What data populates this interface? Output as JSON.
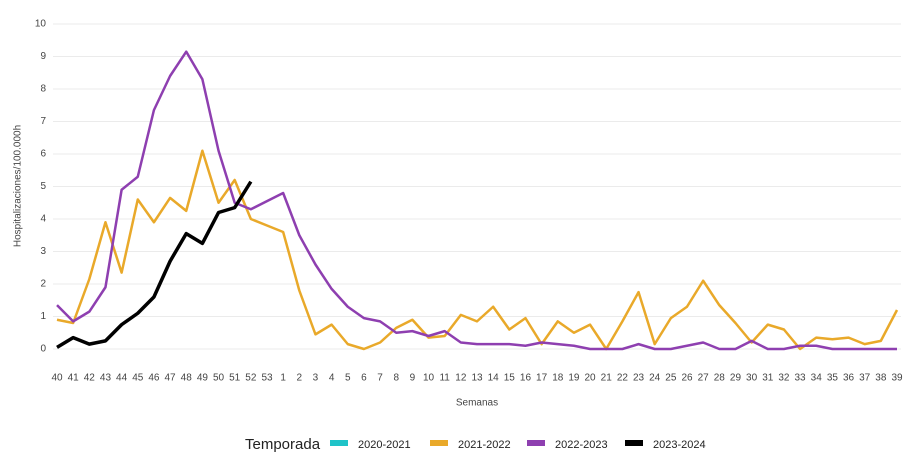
{
  "chart_data": {
    "type": "line",
    "x_label": "Semanas",
    "y_label": "Hospitalizaciones/100.000h",
    "legend_title": "Temporada",
    "categories": [
      "40",
      "41",
      "42",
      "43",
      "44",
      "45",
      "46",
      "47",
      "48",
      "49",
      "50",
      "51",
      "52",
      "53",
      "1",
      "2",
      "3",
      "4",
      "5",
      "6",
      "7",
      "8",
      "9",
      "10",
      "11",
      "12",
      "13",
      "14",
      "15",
      "16",
      "17",
      "18",
      "19",
      "20",
      "21",
      "22",
      "23",
      "24",
      "25",
      "26",
      "27",
      "28",
      "29",
      "30",
      "31",
      "32",
      "33",
      "34",
      "35",
      "36",
      "37",
      "38",
      "39"
    ],
    "series": [
      {
        "name": "2020-2021",
        "color": "#1fc3c8",
        "values": [
          null,
          null,
          null,
          null,
          null,
          null,
          null,
          null,
          null,
          null,
          null,
          null,
          null,
          null,
          null,
          null,
          null,
          null,
          null,
          null,
          null,
          null,
          null,
          null,
          null,
          null,
          null,
          null,
          null,
          null,
          null,
          null,
          null,
          null,
          null,
          null,
          null,
          null,
          null,
          null,
          null,
          null,
          null,
          null,
          null,
          null,
          null,
          null,
          null,
          null,
          null,
          null,
          null
        ]
      },
      {
        "name": "2021-2022",
        "color": "#e9a92a",
        "values": [
          0.9,
          0.8,
          2.15,
          3.9,
          2.35,
          4.6,
          3.9,
          4.65,
          4.25,
          6.1,
          4.5,
          5.2,
          4.0,
          3.8,
          3.6,
          1.8,
          0.45,
          0.75,
          0.15,
          0,
          0.2,
          0.65,
          0.9,
          0.35,
          0.4,
          1.05,
          0.85,
          1.3,
          0.6,
          0.95,
          0.15,
          0.85,
          0.5,
          0.75,
          0,
          0.85,
          1.75,
          0.15,
          0.95,
          1.3,
          2.1,
          1.35,
          0.8,
          0.2,
          0.75,
          0.6,
          0,
          0.35,
          0.3,
          0.35,
          0.15,
          0.25,
          1.2
        ]
      },
      {
        "name": "2022-2023",
        "color": "#8e3fb0",
        "values": [
          1.35,
          0.85,
          1.15,
          1.9,
          4.9,
          5.3,
          7.35,
          8.4,
          9.15,
          8.3,
          6.1,
          4.5,
          4.3,
          4.55,
          4.8,
          3.5,
          2.6,
          1.85,
          1.3,
          0.95,
          0.85,
          0.5,
          0.55,
          0.4,
          0.55,
          0.2,
          0.15,
          0.15,
          0.15,
          0.1,
          0.2,
          0.15,
          0.1,
          0,
          0,
          0,
          0.15,
          0,
          0,
          0.1,
          0.2,
          0,
          0,
          0.25,
          0,
          0,
          0.1,
          0.1,
          0,
          0,
          0,
          0,
          0
        ]
      },
      {
        "name": "2023-2024",
        "color": "#000000",
        "values": [
          0.05,
          0.35,
          0.15,
          0.25,
          0.75,
          1.1,
          1.6,
          2.7,
          3.55,
          3.25,
          4.2,
          4.35,
          5.15,
          null,
          null,
          null,
          null,
          null,
          null,
          null,
          null,
          null,
          null,
          null,
          null,
          null,
          null,
          null,
          null,
          null,
          null,
          null,
          null,
          null,
          null,
          null,
          null,
          null,
          null,
          null,
          null,
          null,
          null,
          null,
          null,
          null,
          null,
          null,
          null,
          null,
          null,
          null,
          null
        ]
      }
    ],
    "ylim": [
      0,
      10
    ],
    "yticks": [
      0,
      1,
      2,
      3,
      4,
      5,
      6,
      7,
      8,
      9,
      10
    ],
    "grid": true
  }
}
